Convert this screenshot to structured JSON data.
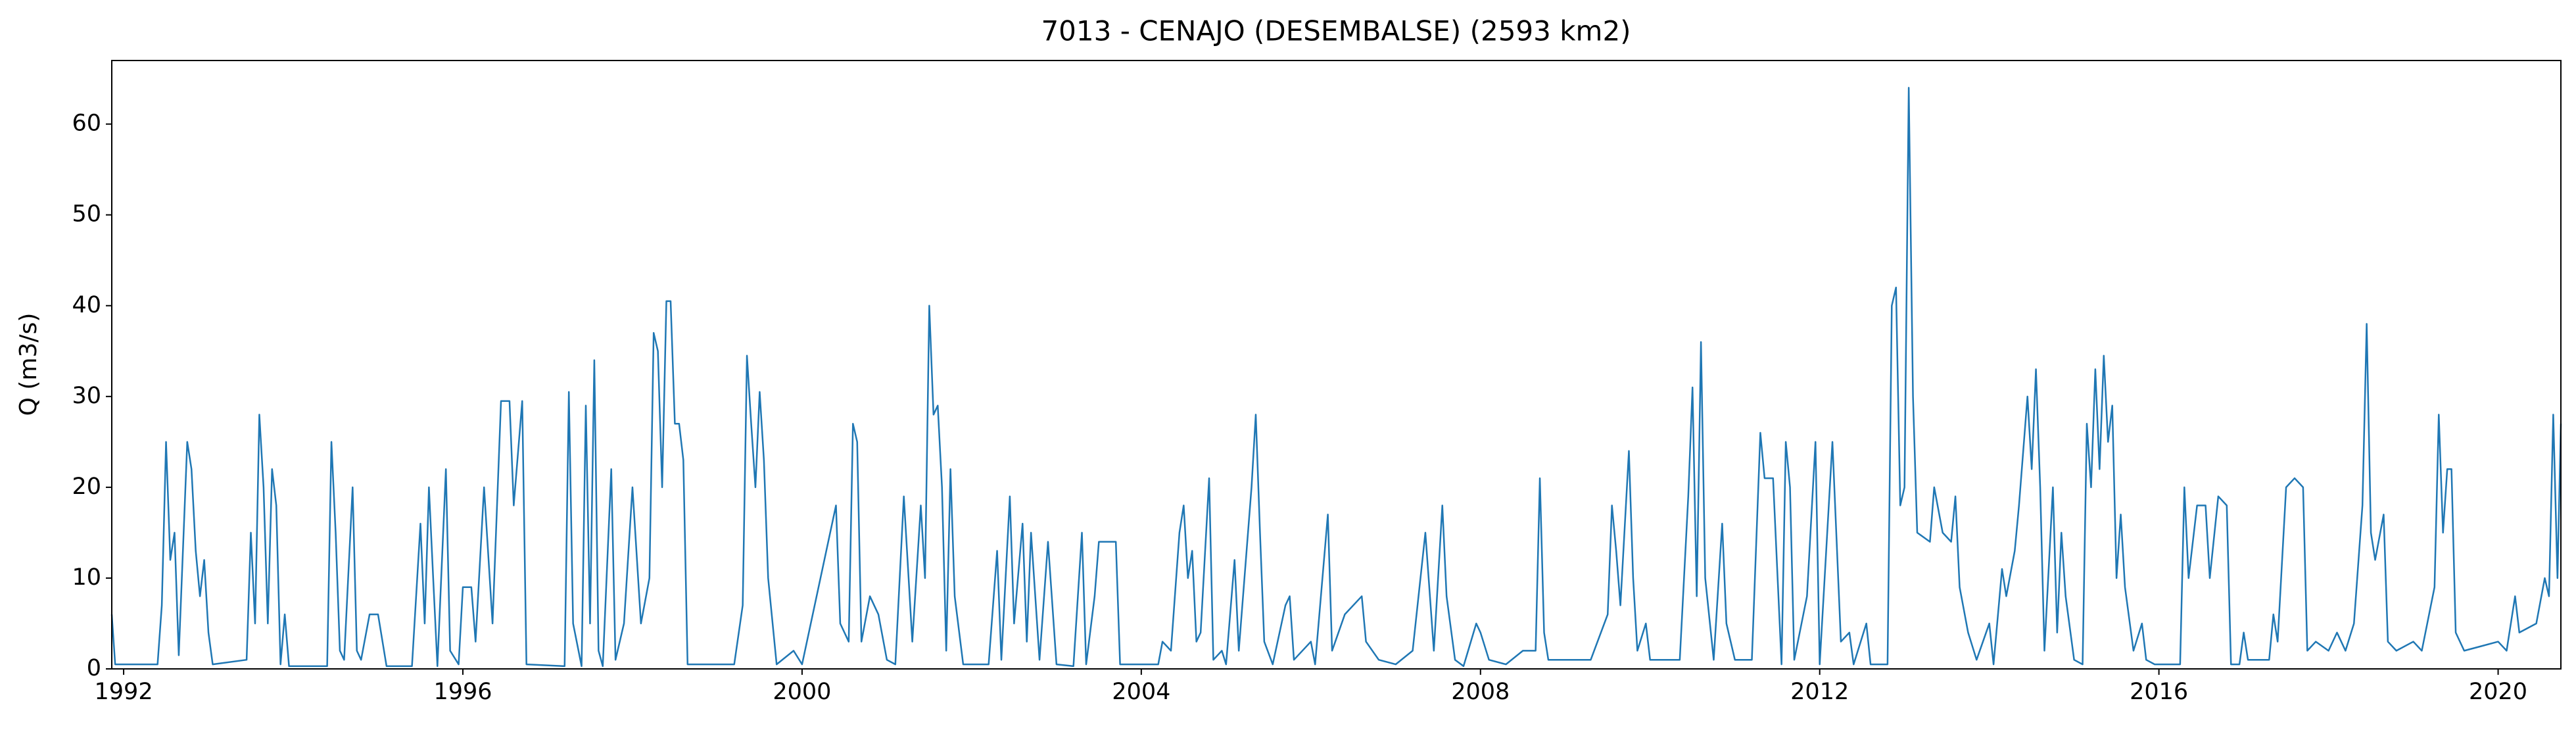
{
  "chart_data": {
    "type": "line",
    "title": "7013 - CENAJO (DESEMBALSE) (2593 km2)",
    "y_label": "Q (m3/s)",
    "xlim": [
      1991.86,
      2020.74
    ],
    "xticks": [
      1992,
      1996,
      2000,
      2004,
      2008,
      2012,
      2016,
      2020
    ],
    "ylim": [
      0,
      67
    ],
    "yticks": [
      0,
      10,
      20,
      30,
      40,
      50,
      60
    ],
    "grid": false,
    "series": [
      {
        "color": "#1f77b4",
        "x": [
          1991.86,
          1991.9,
          1992.4,
          1992.45,
          1992.5,
          1992.55,
          1992.6,
          1992.65,
          1992.75,
          1992.8,
          1992.85,
          1992.9,
          1992.95,
          1993.0,
          1993.05,
          1993.45,
          1993.5,
          1993.55,
          1993.6,
          1993.65,
          1993.7,
          1993.75,
          1993.8,
          1993.85,
          1993.9,
          1993.95,
          1994.4,
          1994.45,
          1994.5,
          1994.55,
          1994.6,
          1994.7,
          1994.75,
          1994.8,
          1994.9,
          1995.0,
          1995.1,
          1995.4,
          1995.5,
          1995.55,
          1995.6,
          1995.65,
          1995.7,
          1995.8,
          1995.85,
          1995.95,
          1996.0,
          1996.1,
          1996.15,
          1996.25,
          1996.35,
          1996.45,
          1996.55,
          1996.6,
          1996.7,
          1996.75,
          1997.2,
          1997.25,
          1997.3,
          1997.4,
          1997.45,
          1997.5,
          1997.55,
          1997.6,
          1997.65,
          1997.75,
          1997.8,
          1997.9,
          1998.0,
          1998.1,
          1998.2,
          1998.25,
          1998.3,
          1998.35,
          1998.4,
          1998.45,
          1998.5,
          1998.55,
          1998.6,
          1998.65,
          1999.2,
          1999.3,
          1999.35,
          1999.4,
          1999.45,
          1999.5,
          1999.55,
          1999.6,
          1999.7,
          1999.9,
          2000.0,
          2000.4,
          2000.45,
          2000.55,
          2000.6,
          2000.65,
          2000.7,
          2000.8,
          2000.9,
          2001.0,
          2001.1,
          2001.2,
          2001.3,
          2001.4,
          2001.45,
          2001.5,
          2001.55,
          2001.6,
          2001.65,
          2001.7,
          2001.75,
          2001.8,
          2001.9,
          2002.2,
          2002.3,
          2002.35,
          2002.45,
          2002.5,
          2002.6,
          2002.65,
          2002.7,
          2002.8,
          2002.9,
          2003.0,
          2003.2,
          2003.3,
          2003.35,
          2003.45,
          2003.5,
          2003.6,
          2003.7,
          2003.75,
          2004.2,
          2004.25,
          2004.35,
          2004.45,
          2004.5,
          2004.55,
          2004.6,
          2004.65,
          2004.7,
          2004.8,
          2004.85,
          2004.95,
          2005.0,
          2005.1,
          2005.15,
          2005.3,
          2005.35,
          2005.4,
          2005.45,
          2005.55,
          2005.7,
          2005.75,
          2005.8,
          2006.0,
          2006.05,
          2006.2,
          2006.25,
          2006.4,
          2006.6,
          2006.65,
          2006.8,
          2007.0,
          2007.2,
          2007.35,
          2007.45,
          2007.55,
          2007.6,
          2007.7,
          2007.8,
          2007.95,
          2008.0,
          2008.1,
          2008.3,
          2008.5,
          2008.65,
          2008.7,
          2008.75,
          2008.8,
          2009.3,
          2009.5,
          2009.55,
          2009.6,
          2009.65,
          2009.75,
          2009.8,
          2009.85,
          2009.95,
          2010.0,
          2010.35,
          2010.45,
          2010.5,
          2010.55,
          2010.6,
          2010.65,
          2010.75,
          2010.85,
          2010.9,
          2011.0,
          2011.2,
          2011.3,
          2011.35,
          2011.45,
          2011.55,
          2011.6,
          2011.65,
          2011.7,
          2011.85,
          2011.95,
          2012.0,
          2012.15,
          2012.25,
          2012.35,
          2012.4,
          2012.55,
          2012.6,
          2012.8,
          2012.85,
          2012.9,
          2012.95,
          2013.0,
          2013.05,
          2013.1,
          2013.15,
          2013.3,
          2013.35,
          2013.45,
          2013.55,
          2013.6,
          2013.65,
          2013.75,
          2013.85,
          2014.0,
          2014.05,
          2014.15,
          2014.2,
          2014.3,
          2014.35,
          2014.45,
          2014.5,
          2014.55,
          2014.6,
          2014.65,
          2014.75,
          2014.8,
          2014.85,
          2014.9,
          2015.0,
          2015.1,
          2015.15,
          2015.2,
          2015.25,
          2015.3,
          2015.35,
          2015.4,
          2015.45,
          2015.5,
          2015.55,
          2015.6,
          2015.7,
          2015.8,
          2015.85,
          2015.95,
          2016.25,
          2016.3,
          2016.35,
          2016.45,
          2016.55,
          2016.6,
          2016.7,
          2016.8,
          2016.85,
          2016.95,
          2017.0,
          2017.05,
          2017.3,
          2017.35,
          2017.4,
          2017.5,
          2017.6,
          2017.7,
          2017.75,
          2017.85,
          2018.0,
          2018.1,
          2018.2,
          2018.3,
          2018.4,
          2018.45,
          2018.5,
          2018.55,
          2018.65,
          2018.7,
          2018.8,
          2019.0,
          2019.1,
          2019.25,
          2019.3,
          2019.35,
          2019.4,
          2019.45,
          2019.5,
          2019.6,
          2019.8,
          2020.0,
          2020.1,
          2020.2,
          2020.25,
          2020.45,
          2020.55,
          2020.6,
          2020.65,
          2020.7,
          2020.74
        ],
        "values": [
          6,
          0.5,
          0.5,
          7,
          25,
          12,
          15,
          1.5,
          25,
          22,
          13,
          8,
          12,
          4,
          0.5,
          1,
          15,
          5,
          28,
          20,
          5,
          22,
          18,
          0.5,
          6,
          0.3,
          0.3,
          25,
          15,
          2,
          1,
          20,
          2,
          1,
          6,
          6,
          0.3,
          0.3,
          16,
          5,
          20,
          10,
          0.3,
          22,
          2,
          0.5,
          9,
          9,
          3,
          20,
          5,
          29.5,
          29.5,
          18,
          29.5,
          0.5,
          0.3,
          30.5,
          5,
          0.3,
          29,
          5,
          34,
          2,
          0.3,
          22,
          1,
          5,
          20,
          5,
          10,
          37,
          35,
          20,
          40.5,
          40.5,
          27,
          27,
          23,
          0.5,
          0.5,
          7,
          34.5,
          27,
          20,
          30.5,
          23,
          10,
          0.5,
          2,
          0.5,
          18,
          5,
          3,
          27,
          25,
          3,
          8,
          6,
          1,
          0.5,
          19,
          3,
          18,
          10,
          40,
          28,
          29,
          20,
          2,
          22,
          8,
          0.5,
          0.5,
          13,
          1,
          19,
          5,
          16,
          3,
          15,
          1,
          14,
          0.5,
          0.3,
          15,
          0.5,
          8,
          14,
          14,
          14,
          0.5,
          0.5,
          3,
          2,
          15,
          18,
          10,
          13,
          3,
          4,
          21,
          1,
          2,
          0.5,
          12,
          2,
          20,
          28,
          15,
          3,
          0.5,
          7,
          8,
          1,
          3,
          0.5,
          17,
          2,
          6,
          8,
          3,
          1,
          0.5,
          2,
          15,
          2,
          18,
          8,
          1,
          0.3,
          5,
          4,
          1,
          0.5,
          2,
          2,
          21,
          4,
          1,
          1,
          6,
          18,
          13,
          7,
          24,
          10,
          2,
          5,
          1,
          1,
          19,
          31,
          8,
          36,
          10,
          1,
          16,
          5,
          1,
          1,
          26,
          21,
          21,
          0.5,
          25,
          20,
          1,
          8,
          25,
          0.5,
          25,
          3,
          4,
          0.5,
          5,
          0.5,
          0.5,
          40,
          42,
          18,
          20,
          64,
          30,
          15,
          14,
          20,
          15,
          14,
          19,
          9,
          4,
          1,
          5,
          0.5,
          11,
          8,
          13,
          18,
          30,
          22,
          33,
          20,
          2,
          20,
          4,
          15,
          8,
          1,
          0.5,
          27,
          20,
          33,
          22,
          34.5,
          25,
          29,
          10,
          17,
          9,
          2,
          5,
          1,
          0.5,
          0.5,
          20,
          10,
          18,
          18,
          10,
          19,
          18,
          0.5,
          0.5,
          4,
          1,
          1,
          6,
          3,
          20,
          21,
          20,
          2,
          3,
          2,
          4,
          2,
          5,
          18,
          38,
          15,
          12,
          17,
          3,
          2,
          3,
          2,
          9,
          28,
          15,
          22,
          22,
          4,
          2,
          2.5,
          3,
          2,
          8,
          4,
          5,
          10,
          8,
          28,
          10,
          27
        ]
      }
    ]
  }
}
